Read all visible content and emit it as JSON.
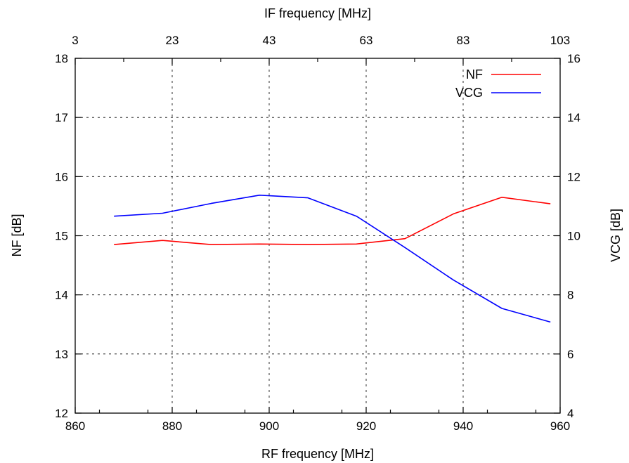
{
  "chart_data": {
    "type": "line",
    "xlabel": "RF frequency [MHz]",
    "x2label": "IF frequency [MHz]",
    "ylabel": "NF [dB]",
    "y2label": "VCG [dB]",
    "xlim": [
      860,
      960
    ],
    "x2lim": [
      3,
      103
    ],
    "ylim": [
      12,
      18
    ],
    "y2lim": [
      4,
      16
    ],
    "x_ticks": [
      "860",
      "880",
      "900",
      "920",
      "940",
      "960"
    ],
    "x2_ticks": [
      "3",
      "23",
      "43",
      "63",
      "83",
      "103"
    ],
    "y_ticks": [
      "12",
      "13",
      "14",
      "15",
      "16",
      "17",
      "18"
    ],
    "y2_ticks": [
      "4",
      "6",
      "8",
      "10",
      "12",
      "14",
      "16"
    ],
    "grid": true,
    "legend_position": "top-right",
    "x": [
      868,
      878,
      888,
      898,
      908,
      918,
      928,
      938,
      948,
      958
    ],
    "series": [
      {
        "name": "NF",
        "axis": "left",
        "color": "#ff0000",
        "values": [
          14.85,
          14.92,
          14.85,
          14.86,
          14.85,
          14.86,
          14.95,
          15.37,
          15.65,
          15.54
        ]
      },
      {
        "name": "VCG",
        "axis": "right",
        "color": "#0000ff",
        "values": [
          10.66,
          10.76,
          11.09,
          11.37,
          11.28,
          10.66,
          9.6,
          8.5,
          7.54,
          7.08
        ]
      }
    ]
  }
}
